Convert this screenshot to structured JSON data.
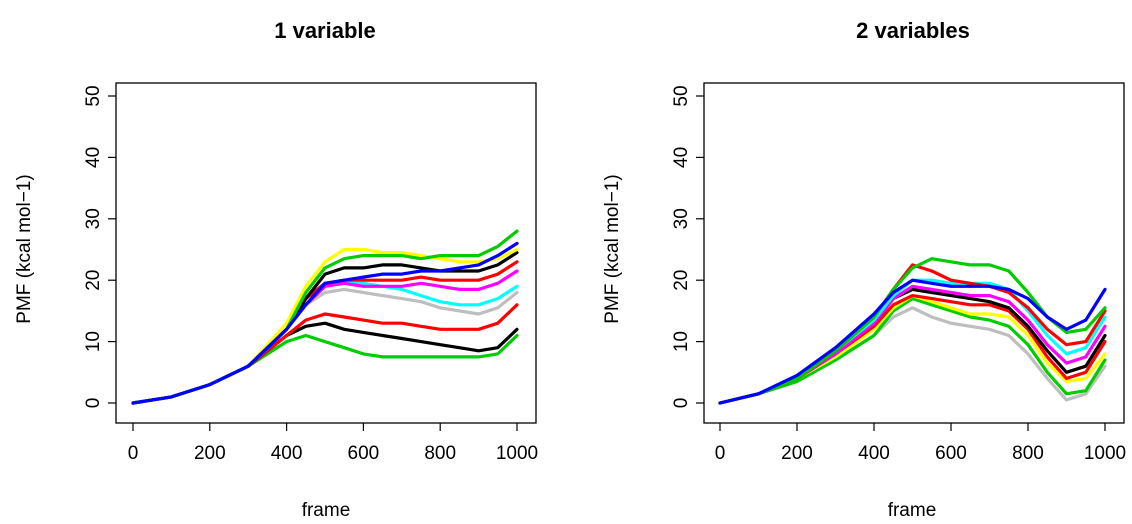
{
  "chart_data": [
    {
      "type": "line",
      "title": "1 variable",
      "xlabel": "frame",
      "ylabel": "PMF (kcal mol−1)",
      "xlim": [
        0,
        1000
      ],
      "ylim": [
        0,
        50
      ],
      "x_ticks": [
        "0",
        "200",
        "400",
        "600",
        "800",
        "1000"
      ],
      "y_ticks": [
        "0",
        "10",
        "20",
        "30",
        "40",
        "50"
      ],
      "grid": false,
      "x": [
        0,
        100,
        200,
        300,
        400,
        450,
        500,
        550,
        600,
        650,
        700,
        750,
        800,
        850,
        900,
        950,
        1000
      ],
      "series": [
        {
          "color": "#00cc00",
          "values": [
            0,
            1,
            3,
            6,
            10,
            11,
            10,
            9,
            8,
            7.5,
            7.5,
            7.5,
            7.5,
            7.5,
            7.5,
            8,
            11
          ]
        },
        {
          "color": "#000000",
          "values": [
            0,
            1,
            3,
            6,
            11,
            12.5,
            13,
            12,
            11.5,
            11,
            10.5,
            10,
            9.5,
            9,
            8.5,
            9,
            12
          ]
        },
        {
          "color": "#ff0000",
          "values": [
            0,
            1,
            3,
            6,
            11,
            13.5,
            14.5,
            14,
            13.5,
            13,
            13,
            12.5,
            12,
            12,
            12,
            13,
            16
          ]
        },
        {
          "color": "#bebebe",
          "values": [
            0,
            1,
            3,
            6,
            12,
            16,
            18,
            18.5,
            18,
            17.5,
            17,
            16.5,
            15.5,
            15,
            14.5,
            15.5,
            18
          ]
        },
        {
          "color": "#00ffff",
          "values": [
            0,
            1,
            3,
            6,
            12,
            16,
            19,
            19.5,
            19.5,
            19,
            18.5,
            17.5,
            16.5,
            16,
            16,
            17,
            19
          ]
        },
        {
          "color": "#ff00ff",
          "values": [
            0,
            1,
            3,
            6,
            12,
            16,
            19,
            19.5,
            19,
            19,
            19,
            19.5,
            19,
            18.5,
            18.5,
            19.5,
            21.5
          ]
        },
        {
          "color": "#ff0000",
          "values": [
            0,
            1,
            3,
            6,
            12,
            17,
            19.5,
            20,
            20,
            20,
            20,
            20.5,
            20,
            20,
            20,
            21,
            23
          ]
        },
        {
          "color": "#000000",
          "values": [
            0,
            1,
            3,
            6,
            12,
            17,
            21,
            22,
            22,
            22.5,
            22.5,
            22,
            21.5,
            21.5,
            21.5,
            22.5,
            24.5
          ]
        },
        {
          "color": "#ffff00",
          "values": [
            0,
            1,
            3,
            6,
            13,
            19,
            23,
            25,
            25,
            24.5,
            24.5,
            24,
            23.5,
            23,
            23,
            23.5,
            25
          ]
        },
        {
          "color": "#00cc00",
          "values": [
            0,
            1,
            3,
            6,
            12,
            18,
            22,
            23.5,
            24,
            24,
            24,
            23.5,
            24,
            24,
            24,
            25.5,
            28
          ]
        },
        {
          "color": "#0000ff",
          "values": [
            0,
            1,
            3,
            6,
            12,
            16,
            19.5,
            20,
            20.5,
            21,
            21,
            21.5,
            21.5,
            22,
            22.5,
            24,
            26
          ]
        }
      ]
    },
    {
      "type": "line",
      "title": "2 variables",
      "xlabel": "frame",
      "ylabel": "PMF (kcal mol−1)",
      "xlim": [
        0,
        1000
      ],
      "ylim": [
        0,
        50
      ],
      "x_ticks": [
        "0",
        "200",
        "400",
        "600",
        "800",
        "1000"
      ],
      "y_ticks": [
        "0",
        "10",
        "20",
        "30",
        "40",
        "50"
      ],
      "grid": false,
      "x": [
        0,
        100,
        200,
        300,
        400,
        450,
        500,
        550,
        600,
        650,
        700,
        750,
        800,
        850,
        900,
        950,
        1000
      ],
      "series": [
        {
          "color": "#bebebe",
          "values": [
            0,
            1.5,
            3.5,
            7,
            11,
            14,
            15.5,
            14,
            13,
            12.5,
            12,
            11,
            8,
            4,
            0.5,
            1.5,
            6
          ]
        },
        {
          "color": "#00cc00",
          "values": [
            0,
            1.5,
            3.5,
            7,
            11,
            15,
            17,
            16,
            15,
            14,
            13.5,
            12.5,
            9.5,
            5,
            1.5,
            2,
            7
          ]
        },
        {
          "color": "#ffff00",
          "values": [
            0,
            1.5,
            4,
            7.5,
            12,
            15.5,
            17.5,
            16.5,
            15.5,
            14.5,
            14.5,
            14,
            11,
            6.5,
            3.5,
            4,
            8
          ]
        },
        {
          "color": "#ff0000",
          "values": [
            0,
            1.5,
            4,
            8,
            12.5,
            16,
            17.5,
            17,
            16.5,
            16,
            16,
            15,
            12,
            7.5,
            4,
            5,
            10
          ]
        },
        {
          "color": "#000000",
          "values": [
            0,
            1.5,
            4,
            8,
            13,
            17,
            18.5,
            18,
            17.5,
            17,
            16.5,
            15.5,
            12.5,
            8.5,
            5,
            6,
            11
          ]
        },
        {
          "color": "#ff00ff",
          "values": [
            0,
            1.5,
            4,
            8,
            13,
            17,
            19,
            18.5,
            18,
            17.5,
            17.5,
            16.5,
            13.5,
            9.5,
            6.5,
            7.5,
            12.5
          ]
        },
        {
          "color": "#00ffff",
          "values": [
            0,
            1.5,
            4,
            8.5,
            13.5,
            17.5,
            20,
            20,
            19.5,
            19.5,
            19.5,
            18.5,
            15,
            11,
            8,
            9,
            14
          ]
        },
        {
          "color": "#ff0000",
          "values": [
            0,
            1.5,
            4,
            8.5,
            14,
            18.5,
            22.5,
            21.5,
            20,
            19.5,
            19,
            18,
            15.5,
            12,
            9.5,
            10,
            15
          ]
        },
        {
          "color": "#00cc00",
          "values": [
            0,
            1.5,
            4,
            8.5,
            14,
            18.5,
            22,
            23.5,
            23,
            22.5,
            22.5,
            21.5,
            18,
            14,
            11.5,
            12,
            15.5
          ]
        },
        {
          "color": "#0000ff",
          "values": [
            0,
            1.5,
            4.5,
            9,
            14.5,
            18,
            20,
            19.5,
            19,
            19,
            19,
            18.5,
            17,
            14,
            12,
            13.5,
            18.5
          ]
        }
      ]
    }
  ]
}
